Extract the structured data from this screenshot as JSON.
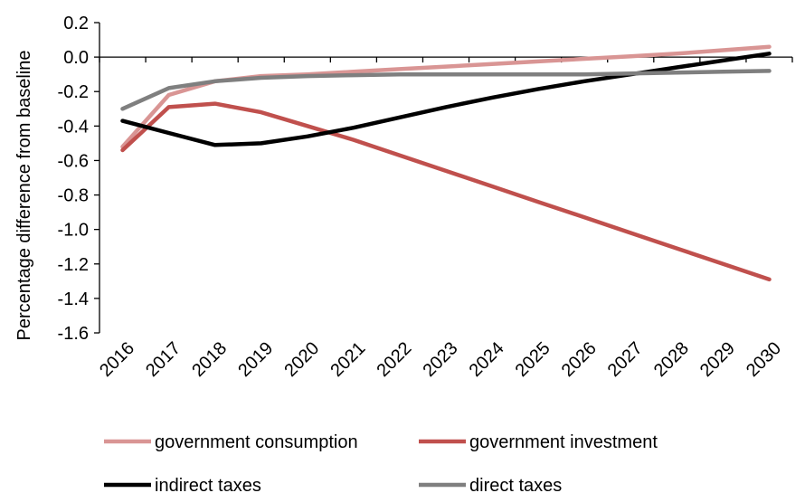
{
  "chart_data": {
    "type": "line",
    "title": "",
    "xlabel": "",
    "ylabel": "Percentage difference from baseline",
    "x": [
      "2016",
      "2017",
      "2018",
      "2019",
      "2020",
      "2021",
      "2022",
      "2023",
      "2024",
      "2025",
      "2026",
      "2027",
      "2028",
      "2029",
      "2030"
    ],
    "ylim": [
      -1.6,
      0.2
    ],
    "yticks": [
      "0.2",
      "0.0",
      "-0.2",
      "-0.4",
      "-0.6",
      "-0.8",
      "-1.0",
      "-1.2",
      "-1.4",
      "-1.6"
    ],
    "grid": false,
    "legend_position": "bottom",
    "series": [
      {
        "name": "government consumption",
        "color": "#d99594",
        "values": [
          -0.52,
          -0.22,
          -0.14,
          -0.11,
          -0.1,
          -0.085,
          -0.07,
          -0.055,
          -0.04,
          -0.025,
          -0.01,
          0.005,
          0.02,
          0.04,
          0.06
        ]
      },
      {
        "name": "government investment",
        "color": "#c0504d",
        "values": [
          -0.54,
          -0.29,
          -0.27,
          -0.32,
          -0.4,
          -0.48,
          -0.57,
          -0.66,
          -0.75,
          -0.84,
          -0.93,
          -1.02,
          -1.11,
          -1.2,
          -1.29
        ]
      },
      {
        "name": "indirect taxes",
        "color": "#000000",
        "values": [
          -0.37,
          -0.44,
          -0.51,
          -0.5,
          -0.46,
          -0.41,
          -0.35,
          -0.29,
          -0.235,
          -0.185,
          -0.14,
          -0.1,
          -0.06,
          -0.02,
          0.02
        ]
      },
      {
        "name": "direct taxes",
        "color": "#7f7f7f",
        "values": [
          -0.3,
          -0.18,
          -0.14,
          -0.12,
          -0.11,
          -0.105,
          -0.1,
          -0.1,
          -0.1,
          -0.1,
          -0.1,
          -0.095,
          -0.09,
          -0.085,
          -0.08
        ]
      }
    ]
  }
}
